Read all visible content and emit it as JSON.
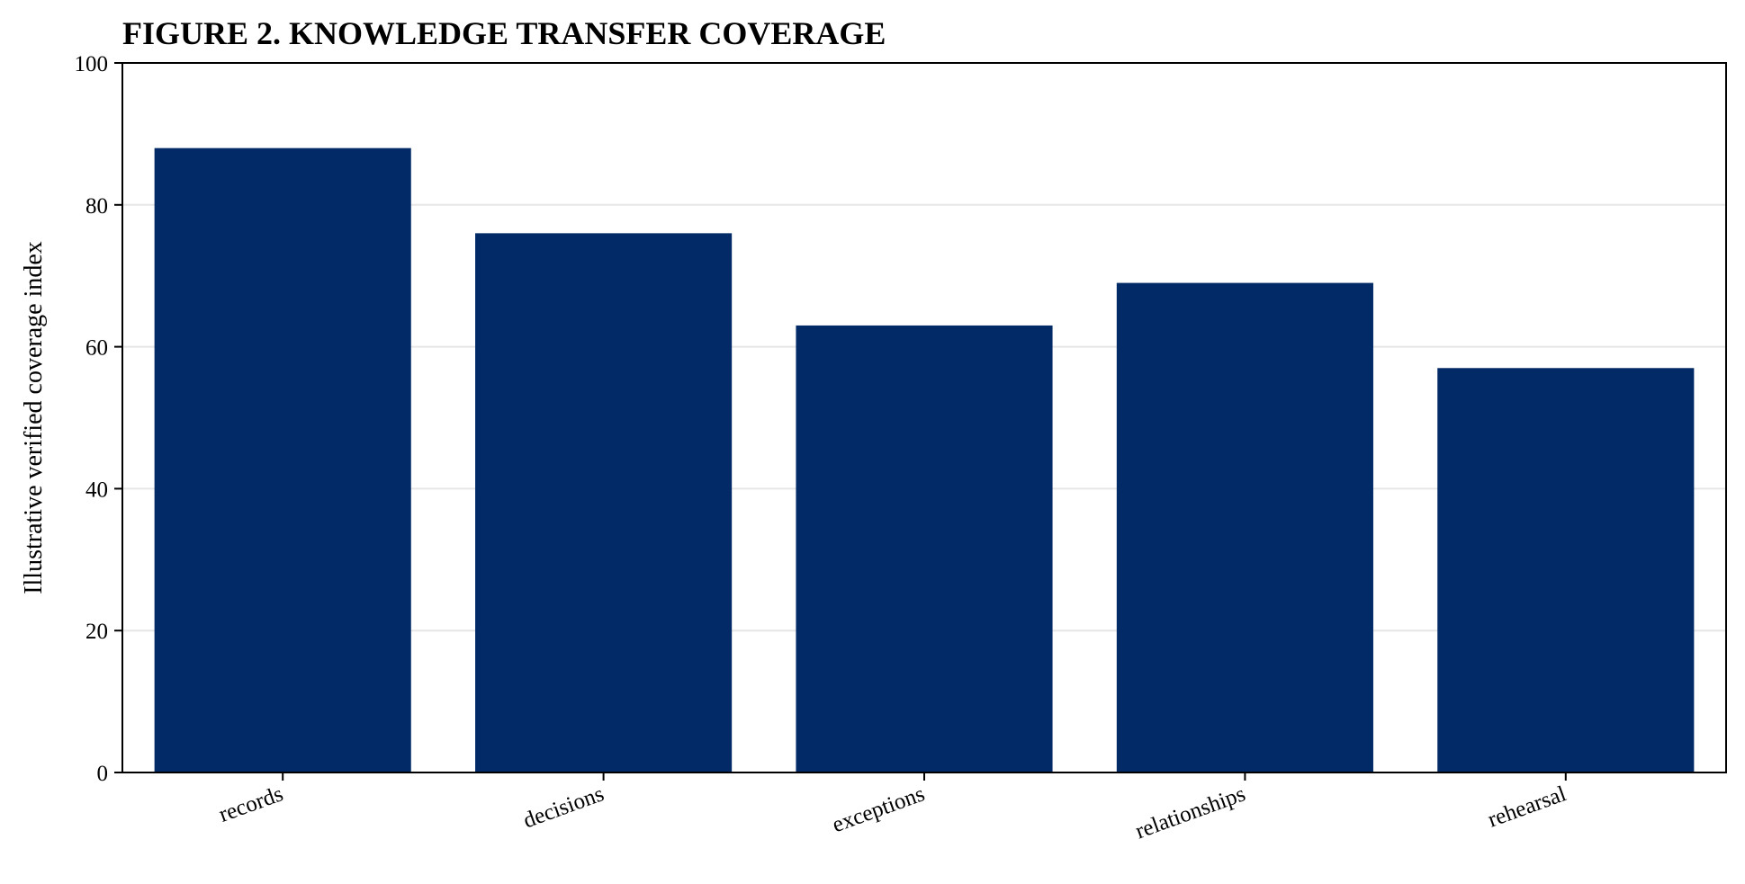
{
  "chart_data": {
    "type": "bar",
    "title": "FIGURE 2. KNOWLEDGE TRANSFER COVERAGE",
    "xlabel": "",
    "ylabel": "Illustrative verified coverage index",
    "categories": [
      "records",
      "decisions",
      "exceptions",
      "relationships",
      "rehearsal"
    ],
    "values": [
      88,
      76,
      63,
      69,
      57
    ],
    "ylim": [
      0,
      100
    ],
    "yticks": [
      0,
      20,
      40,
      60,
      80,
      100
    ],
    "grid": "horizontal",
    "legend": "none",
    "bar_color": "#022a66",
    "grid_color": "#e6e6e6"
  }
}
